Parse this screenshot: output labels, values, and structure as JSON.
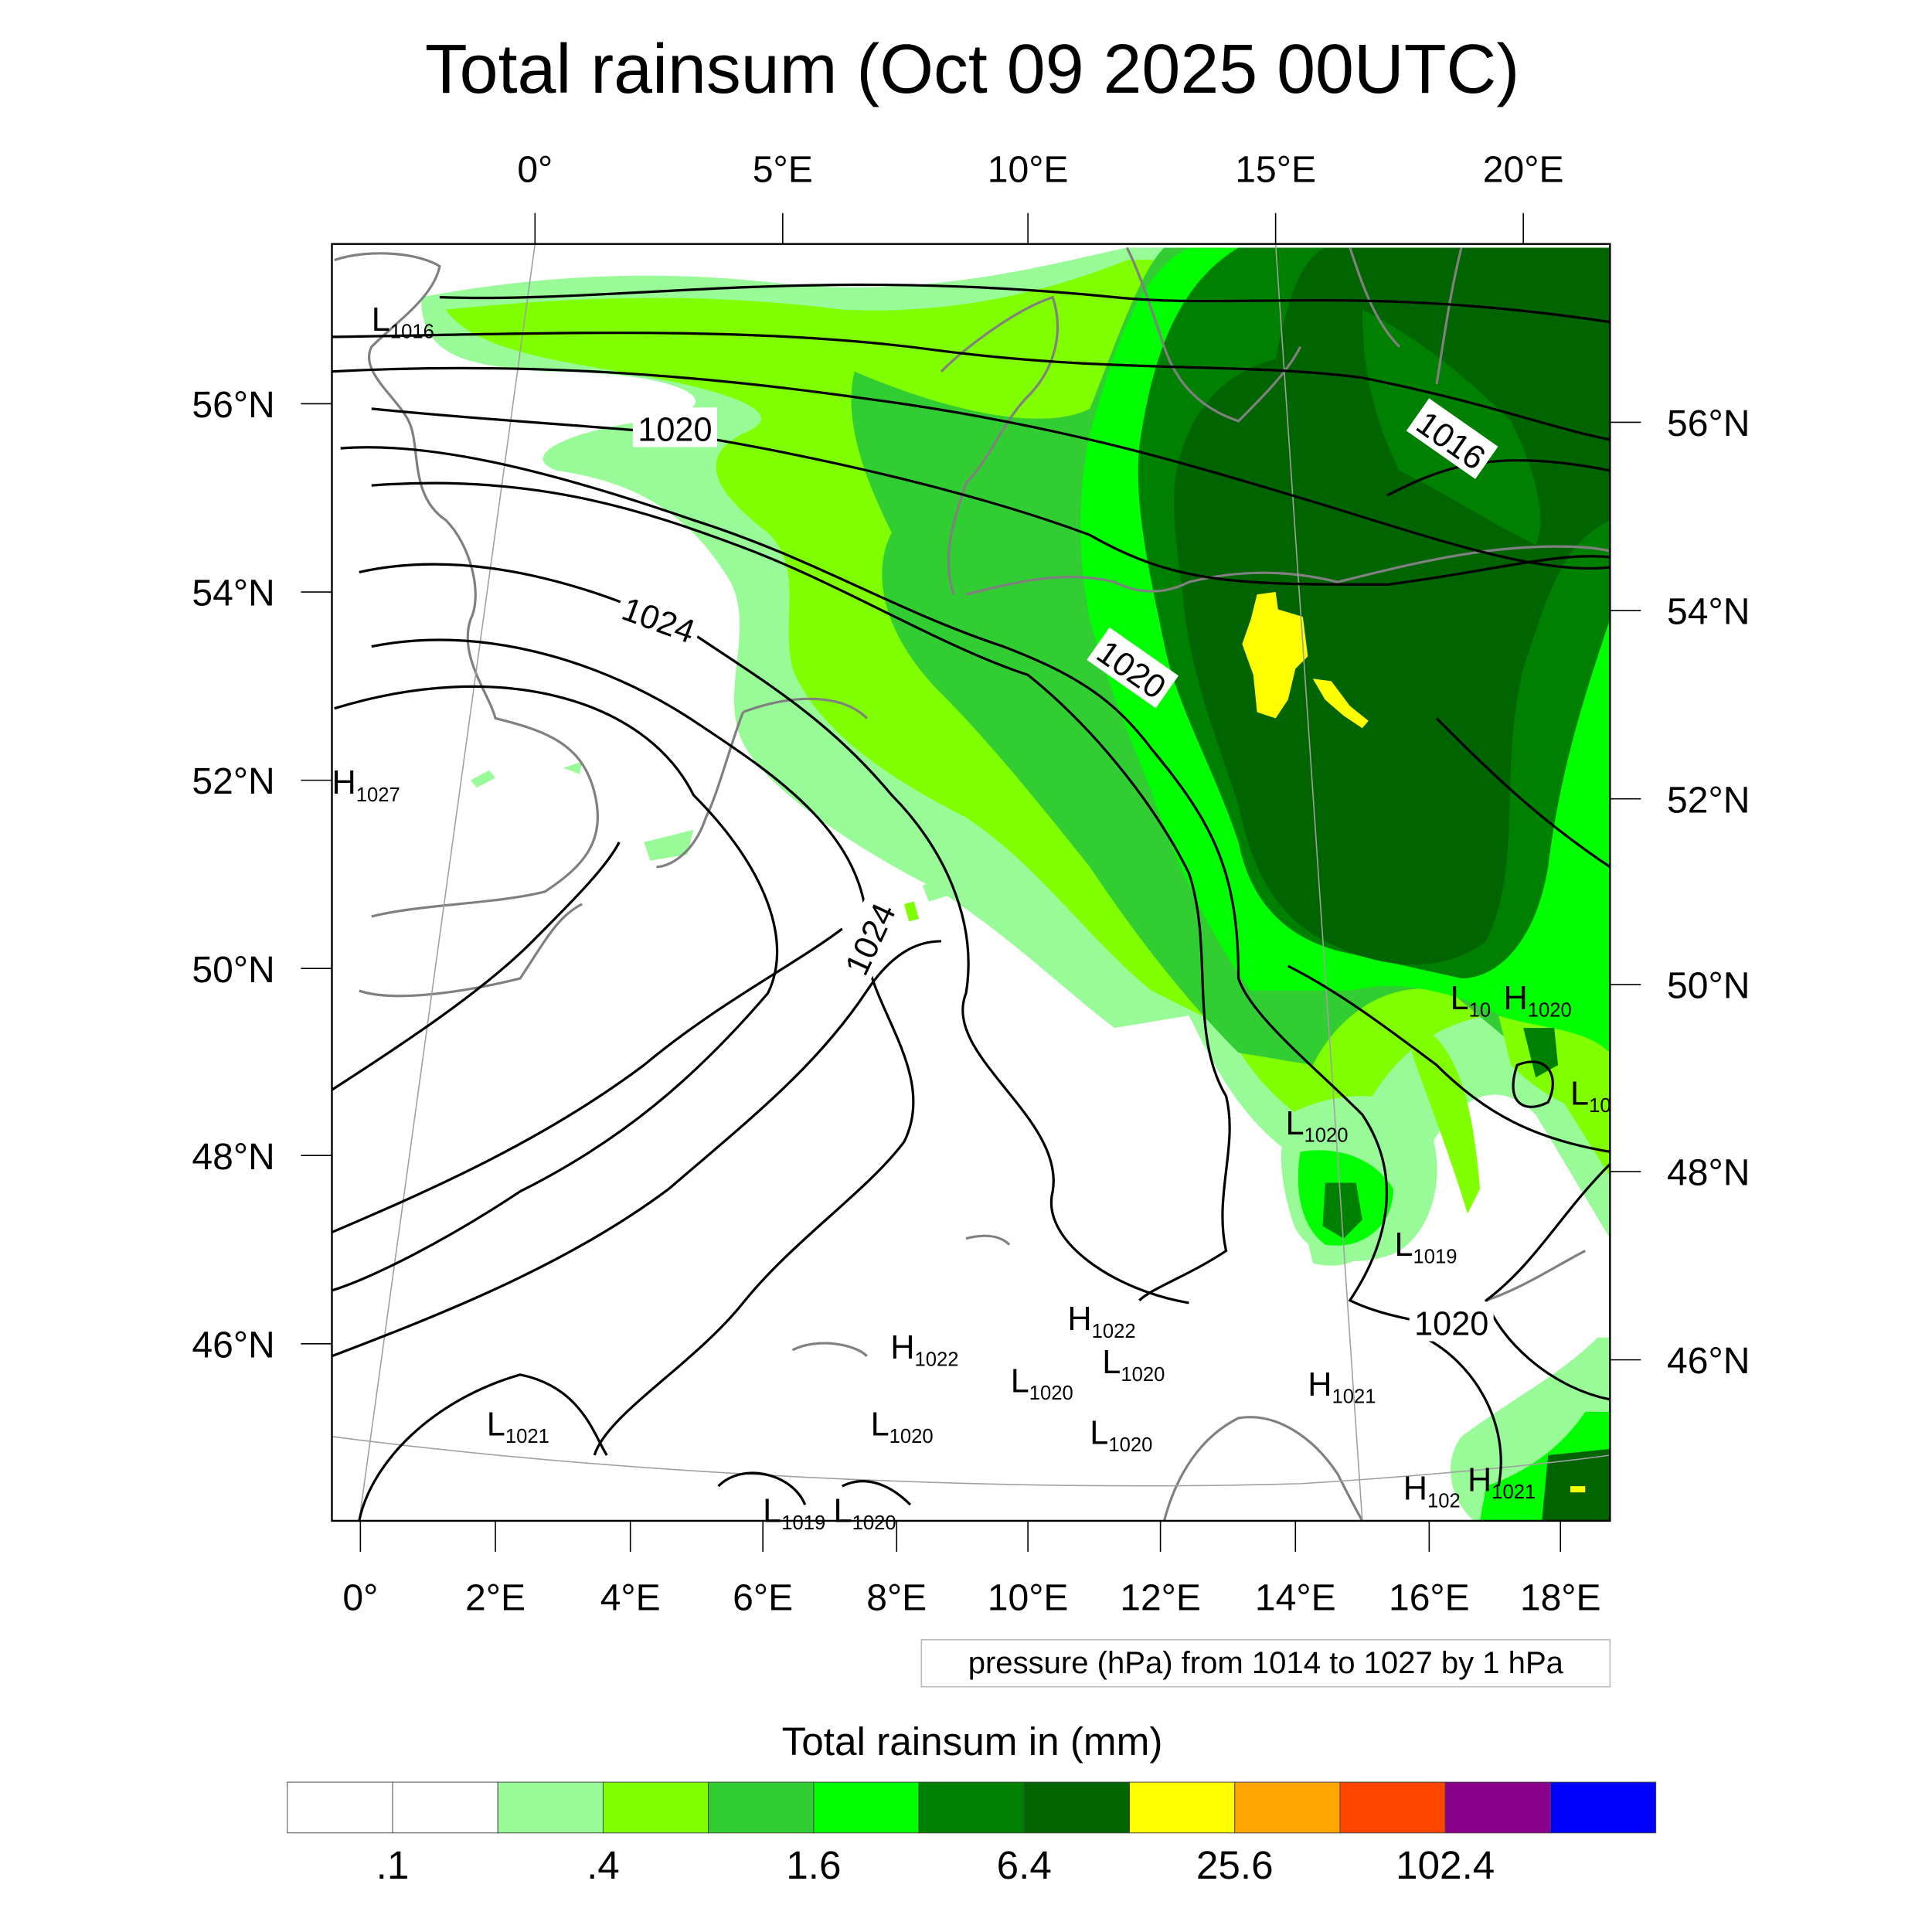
{
  "chart_data": {
    "type": "heatmap",
    "title": "Total rainsum (Oct 09 2025 00UTC)",
    "top_lon_ticks": [
      "0°",
      "5°E",
      "10°E",
      "15°E",
      "20°E"
    ],
    "bottom_lon_ticks": [
      "0°",
      "2°E",
      "4°E",
      "6°E",
      "8°E",
      "10°E",
      "12°E",
      "14°E",
      "16°E",
      "18°E"
    ],
    "left_lat_ticks": [
      "56°N",
      "54°N",
      "52°N",
      "50°N",
      "48°N",
      "46°N"
    ],
    "right_lat_ticks": [
      "56°N",
      "54°N",
      "52°N",
      "50°N",
      "48°N",
      "46°N"
    ],
    "contour_info": "pressure (hPa) from 1014 to 1027 by 1 hPa",
    "contour_range": [
      1014,
      1027
    ],
    "contour_interval": 1,
    "contour_labels": [
      "1020",
      "1024",
      "1020",
      "1016",
      "1024",
      "1020"
    ],
    "pressure_centers": [
      {
        "type": "L",
        "value": "1016"
      },
      {
        "type": "H",
        "value": "1027"
      },
      {
        "type": "L",
        "value": "1021"
      },
      {
        "type": "L",
        "value": "1019"
      },
      {
        "type": "L",
        "value": "1020"
      },
      {
        "type": "H",
        "value": "1022"
      },
      {
        "type": "L",
        "value": "1020"
      },
      {
        "type": "L",
        "value": "1020"
      },
      {
        "type": "H",
        "value": "1022"
      },
      {
        "type": "L",
        "value": "1020"
      },
      {
        "type": "L",
        "value": "1020"
      },
      {
        "type": "H",
        "value": "1021"
      },
      {
        "type": "L",
        "value": "1020"
      },
      {
        "type": "L",
        "value": "1019"
      },
      {
        "type": "L",
        "value": "10"
      },
      {
        "type": "H",
        "value": "1020"
      },
      {
        "type": "L",
        "value": "10"
      },
      {
        "type": "H",
        "value": "102"
      },
      {
        "type": "H",
        "value": "1021"
      }
    ],
    "colorbar": {
      "title": "Total rainsum in (mm)",
      "colors": [
        "#ffffff",
        "#ffffff",
        "#98fb98",
        "#7fff00",
        "#32cd32",
        "#00ff00",
        "#008000",
        "#006400",
        "#ffff00",
        "#ffa500",
        "#ff4500",
        "#8b008b",
        "#0000ff"
      ],
      "labels": [
        ".1",
        ".4",
        "1.6",
        "6.4",
        "25.6",
        "102.4"
      ],
      "levels": [
        0.1,
        0.4,
        1.6,
        6.4,
        25.6,
        102.4
      ]
    }
  }
}
